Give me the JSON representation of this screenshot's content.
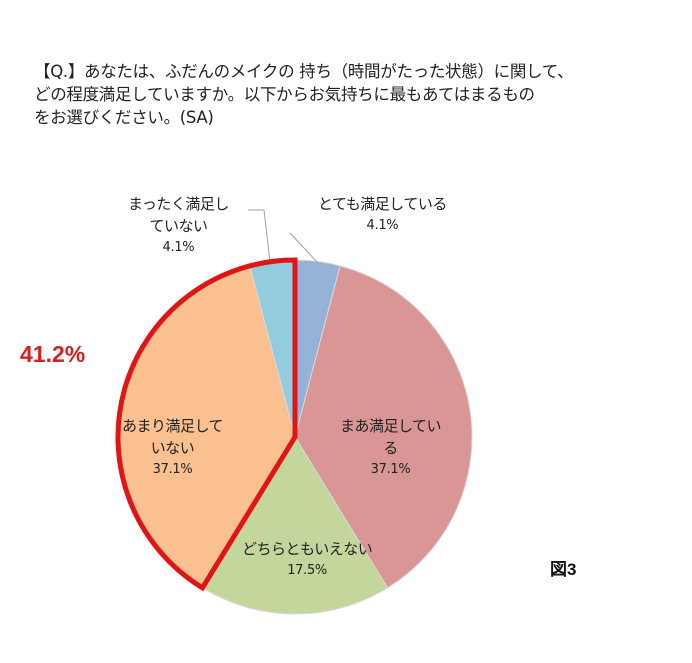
{
  "question": {
    "lines": [
      "【Q.】あなたは、ふだんのメイクの 持ち（時間がたった状態）に関して、",
      "どの程度満足していますか。以下からお気持ちに最もあてはまるもの",
      "をお選びください。(SA)"
    ]
  },
  "highlight": {
    "value": "41.2%",
    "color": "#d42020"
  },
  "figure_label": "図3",
  "chart_data": {
    "type": "pie",
    "title": "【Q.】あなたは、ふだんのメイクの 持ち（時間がたった状態）に関して、どの程度満足していますか。以下からお気持ちに最もあてはまるものをお選びください。(SA)",
    "start_angle": "12 o'clock, clockwise",
    "categories": [
      "とても満足している",
      "まあ満足している",
      "どちらともいえない",
      "あまり満足していない",
      "まったく満足していない"
    ],
    "values": [
      4.1,
      37.1,
      17.5,
      37.1,
      4.1
    ],
    "unit": "%",
    "colors": [
      "#95b3d7",
      "#d99694",
      "#c3d69b",
      "#fac090",
      "#93cddd"
    ],
    "annotations": [
      {
        "text": "41.2%",
        "target": "あまり満足していない + まったく満足していない",
        "outline_color": "#e01515"
      }
    ],
    "legend": "none (data labels on slices)"
  },
  "labels": {
    "very_satisfied": {
      "line1": "とても満足している",
      "pct": "4.1%"
    },
    "somewhat_satisfied": {
      "line1": "まあ満足してい",
      "line2": "る",
      "pct": "37.1%"
    },
    "neutral": {
      "line1": "どちらともいえない",
      "pct": "17.5%"
    },
    "not_very_satisfied": {
      "line1": "あまり満足して",
      "line2": "いない",
      "pct": "37.1%"
    },
    "not_at_all_satisfied": {
      "line1": "まったく満足し",
      "line2": "ていない",
      "pct": "4.1%"
    }
  }
}
